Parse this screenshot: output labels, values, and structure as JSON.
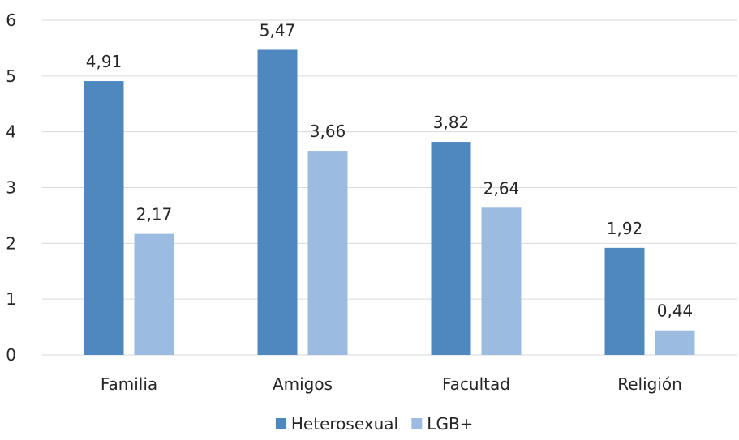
{
  "chart_data": {
    "type": "bar",
    "categories": [
      "Familia",
      "Amigos",
      "Facultad",
      "Religión"
    ],
    "series": [
      {
        "name": "Heterosexual",
        "color": "#4f88bf",
        "values": [
          4.91,
          5.47,
          3.82,
          1.92
        ],
        "labels": [
          "4,91",
          "5,47",
          "3,82",
          "1,92"
        ]
      },
      {
        "name": "LGB+",
        "color": "#9cbbe1",
        "values": [
          2.17,
          3.66,
          2.64,
          0.44
        ],
        "labels": [
          "2,17",
          "3,66",
          "2,64",
          "0,44"
        ]
      }
    ],
    "y_ticks": [
      0,
      1,
      2,
      3,
      4,
      5,
      6
    ],
    "ylim": [
      0,
      6
    ],
    "grid": true,
    "grid_color": "#d9d9d9",
    "legend_position": "bottom"
  }
}
